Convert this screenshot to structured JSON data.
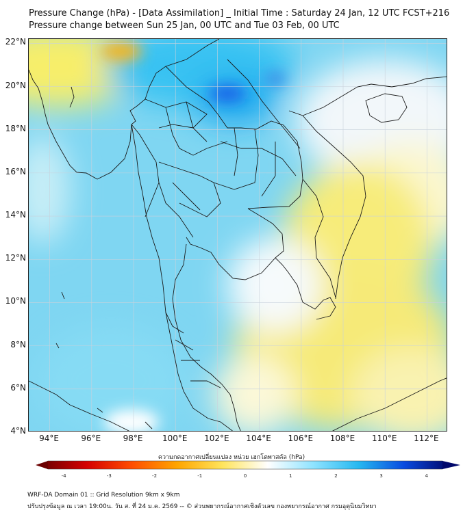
{
  "header": {
    "title_line1": "Pressure Change (hPa) - [Data Assimilation] _ Initial Time : Saturday 24 Jan, 12 UTC FCST+216",
    "title_line2": "Pressure change between Sun 25 Jan, 00 UTC and Tue 03 Feb, 00 UTC"
  },
  "map": {
    "lat_labels": [
      "22°N",
      "20°N",
      "18°N",
      "16°N",
      "14°N",
      "12°N",
      "10°N",
      "8°N",
      "6°N",
      "4°N"
    ],
    "lon_labels": [
      "94°E",
      "96°E",
      "98°E",
      "100°E",
      "102°E",
      "104°E",
      "106°E",
      "108°E",
      "110°E",
      "112°E"
    ],
    "lat_values": [
      22,
      20,
      18,
      16,
      14,
      12,
      10,
      8,
      6,
      4
    ],
    "lon_values": [
      94,
      96,
      98,
      100,
      102,
      104,
      106,
      108,
      110,
      112
    ],
    "extent": {
      "lon_min": 93,
      "lon_max": 113,
      "lat_min": 4,
      "lat_max": 22.2
    },
    "colors": {
      "strong_fall": "#d86a00",
      "fall": "#f5e04a",
      "neutral": "#f2f6fb",
      "rise": "#6fd3f3",
      "strong_rise": "#1e78ff",
      "land_border": "#1a1a1a",
      "grid": "#c9d2dc"
    }
  },
  "colorbar": {
    "label": "ความกดอากาศเปลี่ยนแปลง หน่วย เฮกโตพาสคัล (hPa)",
    "ticks": [
      "-4",
      "-3",
      "-2",
      "-1",
      "0",
      "1",
      "2",
      "3",
      "4"
    ],
    "tick_values": [
      -4,
      -3,
      -2,
      -1,
      0,
      1,
      2,
      3,
      4
    ],
    "range": [
      -4.5,
      4.5
    ],
    "color_stops": [
      "#6b0000",
      "#d40000",
      "#ff4d00",
      "#ffa500",
      "#ffe45c",
      "#ffffff",
      "#8fe3ff",
      "#26b8f0",
      "#0a4be0",
      "#00086b"
    ]
  },
  "footer": {
    "line1": "WRF-DA Domain 01 :: Grid Resolution 9km x 9km",
    "line2": "ปรับปรุงข้อมูล ณ เวลา 19:00น. วัน ส. ที่ 24 ม.ค. 2569 -- © ส่วนพยากรณ์อากาศเชิงตัวเลข กองพยากรณ์อากาศ กรมอุตุนิยมวิทยา"
  }
}
